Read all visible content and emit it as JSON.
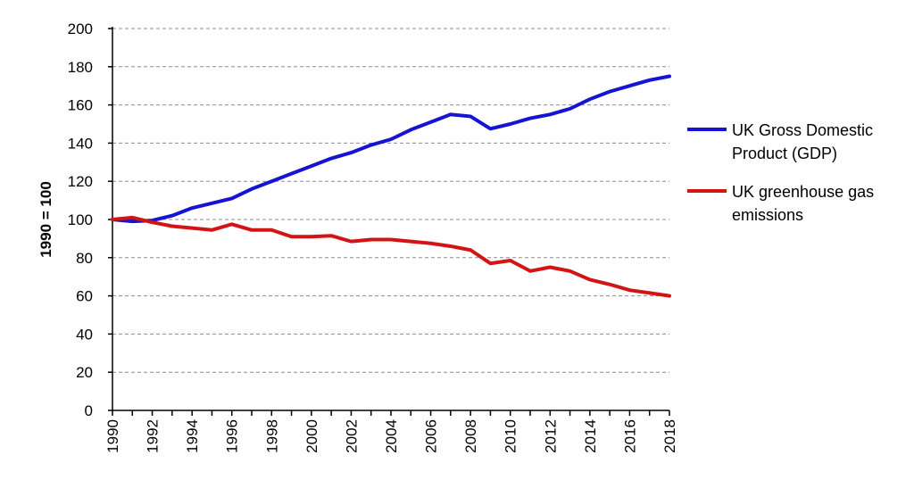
{
  "chart_data": {
    "type": "line",
    "title": "",
    "xlabel": "",
    "ylabel": "1990 = 100",
    "ylim": [
      0,
      200
    ],
    "yticks": [
      0,
      20,
      40,
      60,
      80,
      100,
      120,
      140,
      160,
      180,
      200
    ],
    "xlim": [
      1990,
      2018
    ],
    "xtick_labels": [
      "1990",
      "1992",
      "1994",
      "1996",
      "1998",
      "2000",
      "2002",
      "2004",
      "2006",
      "2008",
      "2010",
      "2012",
      "2014",
      "2016",
      "2018"
    ],
    "grid": "horizontal dashed",
    "legend_position": "right",
    "x": [
      1990,
      1991,
      1992,
      1993,
      1994,
      1995,
      1996,
      1997,
      1998,
      1999,
      2000,
      2001,
      2002,
      2003,
      2004,
      2005,
      2006,
      2007,
      2008,
      2009,
      2010,
      2011,
      2012,
      2013,
      2014,
      2015,
      2016,
      2017,
      2018
    ],
    "series": [
      {
        "name": "UK Gross Domestic Product (GDP)",
        "legend_lines": [
          "UK Gross Domestic",
          "Product (GDP)"
        ],
        "color": "#1414d2",
        "values": [
          100,
          99,
          99.5,
          102,
          106,
          108.5,
          111,
          116,
          120,
          124,
          128,
          132,
          135,
          139,
          142,
          147,
          151,
          155,
          154,
          147.5,
          150,
          153,
          155,
          158,
          163,
          167,
          170,
          173,
          175
        ]
      },
      {
        "name": "UK greenhouse gas emissions",
        "legend_lines": [
          "UK greenhouse gas",
          "emissions"
        ],
        "color": "#d21414",
        "values": [
          100,
          101,
          98.5,
          96.5,
          95.5,
          94.5,
          97.5,
          94.5,
          94.5,
          91,
          91,
          91.5,
          88.5,
          89.5,
          89.5,
          88.5,
          87.5,
          86,
          84,
          77,
          78.5,
          73,
          75,
          73,
          68.5,
          66,
          63,
          61.5,
          60
        ]
      }
    ]
  }
}
